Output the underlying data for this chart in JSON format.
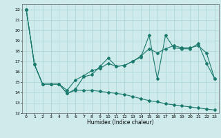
{
  "title": "",
  "xlabel": "Humidex (Indice chaleur)",
  "xlim": [
    -0.5,
    23.5
  ],
  "ylim": [
    12,
    22.5
  ],
  "yticks": [
    12,
    13,
    14,
    15,
    16,
    17,
    18,
    19,
    20,
    21,
    22
  ],
  "xticks": [
    0,
    1,
    2,
    3,
    4,
    5,
    6,
    7,
    8,
    9,
    10,
    11,
    12,
    13,
    14,
    15,
    16,
    17,
    18,
    19,
    20,
    21,
    22,
    23
  ],
  "bg_color": "#ceeaea",
  "grid_color": "#aad4d4",
  "line_color": "#1a7a6e",
  "line1_x": [
    0,
    1,
    2,
    3,
    4,
    5,
    6,
    7,
    8,
    9,
    10,
    11,
    12,
    13,
    14,
    15,
    16,
    17,
    18,
    19,
    20,
    21,
    22,
    23
  ],
  "line1_y": [
    22.0,
    16.7,
    14.8,
    14.8,
    14.8,
    13.9,
    14.3,
    15.5,
    15.7,
    16.5,
    17.3,
    16.5,
    16.6,
    17.0,
    17.4,
    19.5,
    15.3,
    19.5,
    18.3,
    18.2,
    18.2,
    18.7,
    16.8,
    15.3
  ],
  "line2_x": [
    0,
    1,
    2,
    3,
    4,
    5,
    6,
    7,
    8,
    9,
    10,
    11,
    12,
    13,
    14,
    15,
    16,
    17,
    18,
    19,
    20,
    21,
    22,
    23
  ],
  "line2_y": [
    22.0,
    16.7,
    14.8,
    14.8,
    14.8,
    14.2,
    15.2,
    15.6,
    16.1,
    16.3,
    16.8,
    16.5,
    16.6,
    17.0,
    17.5,
    18.2,
    17.8,
    18.2,
    18.5,
    18.3,
    18.3,
    18.5,
    17.8,
    15.3
  ],
  "line3_x": [
    0,
    1,
    2,
    3,
    4,
    5,
    6,
    7,
    8,
    9,
    10,
    11,
    12,
    13,
    14,
    15,
    16,
    17,
    18,
    19,
    20,
    21,
    22,
    23
  ],
  "line3_y": [
    22.0,
    16.7,
    14.8,
    14.8,
    14.8,
    13.9,
    14.2,
    14.2,
    14.2,
    14.1,
    14.0,
    13.9,
    13.8,
    13.6,
    13.4,
    13.2,
    13.1,
    12.9,
    12.8,
    12.7,
    12.6,
    12.5,
    12.4,
    12.3
  ]
}
